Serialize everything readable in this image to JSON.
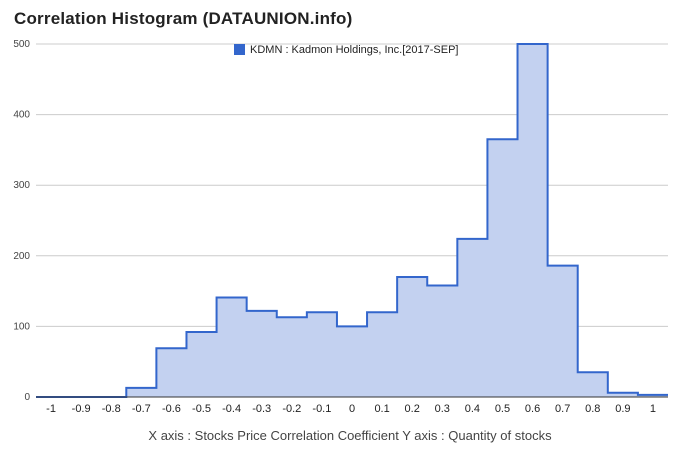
{
  "header": {
    "title": "Correlation Histogram (DATAUNION.info)"
  },
  "chart_data": {
    "type": "area",
    "title": "Correlation Histogram (DATAUNION.info)",
    "xlabel": "X axis : Stocks Price Correlation Coefficient  Y axis : Quantity of stocks",
    "ylabel": "",
    "xlim": [
      -1.05,
      1.05
    ],
    "ylim": [
      0,
      500
    ],
    "x_ticks": [
      -1,
      -0.9,
      -0.8,
      -0.7,
      -0.6,
      -0.5,
      -0.4,
      -0.3,
      -0.2,
      -0.1,
      0,
      0.1,
      0.2,
      0.3,
      0.4,
      0.5,
      0.6,
      0.7,
      0.8,
      0.9,
      1
    ],
    "y_ticks": [
      0,
      100,
      200,
      300,
      400,
      500
    ],
    "grid": true,
    "legend_position": "top-center",
    "color": "#3366cc",
    "fill_color": "#c3d1f0",
    "series": [
      {
        "name": "KDMN : Kadmon Holdings, Inc.[2017-SEP]",
        "bins": [
          {
            "x0": -1.05,
            "x1": -0.75,
            "y": 0
          },
          {
            "x0": -0.75,
            "x1": -0.65,
            "y": 13
          },
          {
            "x0": -0.65,
            "x1": -0.55,
            "y": 69
          },
          {
            "x0": -0.55,
            "x1": -0.45,
            "y": 92
          },
          {
            "x0": -0.45,
            "x1": -0.35,
            "y": 141
          },
          {
            "x0": -0.35,
            "x1": -0.25,
            "y": 122
          },
          {
            "x0": -0.25,
            "x1": -0.15,
            "y": 113
          },
          {
            "x0": -0.15,
            "x1": -0.05,
            "y": 120
          },
          {
            "x0": -0.05,
            "x1": 0.05,
            "y": 100
          },
          {
            "x0": 0.05,
            "x1": 0.15,
            "y": 120
          },
          {
            "x0": 0.15,
            "x1": 0.25,
            "y": 170
          },
          {
            "x0": 0.25,
            "x1": 0.35,
            "y": 158
          },
          {
            "x0": 0.35,
            "x1": 0.45,
            "y": 224
          },
          {
            "x0": 0.45,
            "x1": 0.55,
            "y": 365
          },
          {
            "x0": 0.55,
            "x1": 0.65,
            "y": 500
          },
          {
            "x0": 0.65,
            "x1": 0.75,
            "y": 186
          },
          {
            "x0": 0.75,
            "x1": 0.85,
            "y": 35
          },
          {
            "x0": 0.85,
            "x1": 0.95,
            "y": 6
          },
          {
            "x0": 0.95,
            "x1": 1.05,
            "y": 3
          }
        ]
      }
    ]
  }
}
